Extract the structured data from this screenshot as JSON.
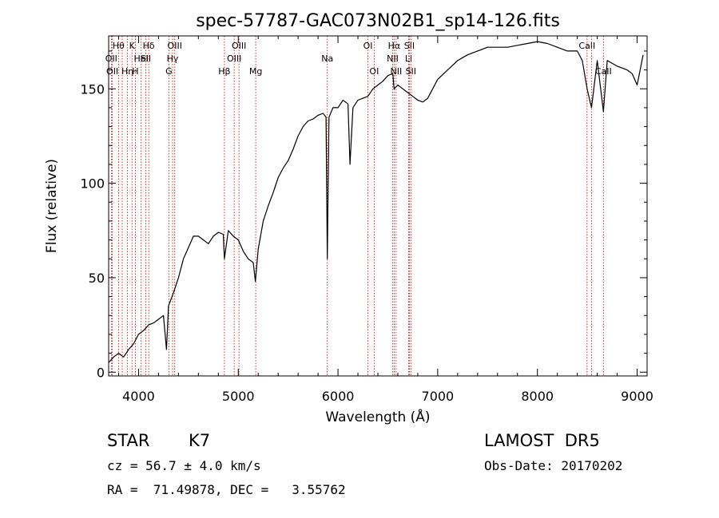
{
  "chart_data": {
    "type": "line",
    "title": "spec-57787-GAC073N02B1_sp14-126.fits",
    "xlabel": "Wavelength (Å)",
    "ylabel": "Flux (relative)",
    "xlim": [
      3700,
      9100
    ],
    "ylim": [
      -2,
      178
    ],
    "xticks": [
      4000,
      5000,
      6000,
      7000,
      8000,
      9000
    ],
    "xtick_labels": [
      "4000",
      "5000",
      "6000",
      "7000",
      "8000",
      "9000"
    ],
    "yticks": [
      0,
      50,
      100,
      150
    ],
    "ytick_labels": [
      "0",
      "50",
      "100",
      "150"
    ],
    "grid": false,
    "line_color": "#000000",
    "marker_color": "#cc0000",
    "series": [
      {
        "x": [
          3700,
          3750,
          3800,
          3850,
          3900,
          3950,
          4000,
          4050,
          4100,
          4150,
          4200,
          4250,
          4280,
          4300,
          4350,
          4400,
          4450,
          4500,
          4550,
          4600,
          4650,
          4700,
          4750,
          4800,
          4850,
          4861,
          4900,
          4950,
          5000,
          5050,
          5100,
          5150,
          5172,
          5200,
          5250,
          5300,
          5350,
          5400,
          5450,
          5500,
          5550,
          5600,
          5650,
          5700,
          5750,
          5800,
          5850,
          5880,
          5893,
          5910,
          5950,
          6000,
          6050,
          6100,
          6120,
          6150,
          6200,
          6250,
          6300,
          6350,
          6400,
          6450,
          6500,
          6550,
          6563,
          6600,
          6650,
          6700,
          6750,
          6800,
          6850,
          6900,
          6950,
          7000,
          7100,
          7200,
          7300,
          7400,
          7500,
          7600,
          7700,
          7800,
          7900,
          8000,
          8100,
          8200,
          8300,
          8400,
          8450,
          8498,
          8542,
          8600,
          8662,
          8700,
          8800,
          8900,
          8950,
          9000,
          9030,
          9060
        ],
        "y": [
          5,
          8,
          10,
          8,
          12,
          15,
          20,
          22,
          25,
          26,
          28,
          30,
          12,
          35,
          42,
          50,
          60,
          66,
          72,
          72,
          70,
          68,
          72,
          74,
          73,
          60,
          75,
          72,
          70,
          64,
          60,
          58,
          48,
          65,
          80,
          88,
          95,
          103,
          108,
          112,
          118,
          125,
          130,
          133,
          134,
          136,
          137,
          135,
          60,
          135,
          140,
          140,
          144,
          142,
          110,
          140,
          144,
          145,
          146,
          150,
          152,
          154,
          157,
          158,
          150,
          152,
          150,
          148,
          146,
          144,
          143,
          145,
          150,
          155,
          160,
          165,
          168,
          170,
          172,
          172,
          172,
          173,
          174,
          175,
          174,
          172,
          170,
          170,
          165,
          150,
          140,
          165,
          138,
          165,
          162,
          160,
          158,
          152,
          160,
          168
        ]
      }
    ],
    "lines": [
      {
        "x": 3799,
        "label": "Hθ",
        "row": 0
      },
      {
        "x": 3836,
        "label": "",
        "row": 0
      },
      {
        "x": 3889,
        "label": "Hη",
        "row": 2
      },
      {
        "x": 3934,
        "label": "K",
        "row": 0
      },
      {
        "x": 3968,
        "label": "H",
        "row": 2
      },
      {
        "x": 4026,
        "label": "HeI",
        "row": 1
      },
      {
        "x": 4102,
        "label": "Hδ",
        "row": 0
      },
      {
        "x": 4072,
        "label": "SII",
        "row": 1
      },
      {
        "x": 3727,
        "label": "OII",
        "row": 1
      },
      {
        "x": 3737,
        "label": "OII",
        "row": 2
      },
      {
        "x": 4304,
        "label": "G",
        "row": 2
      },
      {
        "x": 4341,
        "label": "Hγ",
        "row": 1
      },
      {
        "x": 4363,
        "label": "OIII",
        "row": 0
      },
      {
        "x": 4861,
        "label": "Hβ",
        "row": 2
      },
      {
        "x": 4959,
        "label": "OIII",
        "row": 1
      },
      {
        "x": 5007,
        "label": "OIII",
        "row": 0
      },
      {
        "x": 5175,
        "label": "Mg",
        "row": 2
      },
      {
        "x": 5893,
        "label": "Na",
        "row": 1
      },
      {
        "x": 6300,
        "label": "OI",
        "row": 0
      },
      {
        "x": 6363,
        "label": "OI",
        "row": 2
      },
      {
        "x": 6548,
        "label": "NII",
        "row": 1
      },
      {
        "x": 6563,
        "label": "Hα",
        "row": 0
      },
      {
        "x": 6583,
        "label": "NII",
        "row": 2
      },
      {
        "x": 6708,
        "label": "Li",
        "row": 1
      },
      {
        "x": 6716,
        "label": "SII",
        "row": 0
      },
      {
        "x": 6731,
        "label": "SII",
        "row": 2
      },
      {
        "x": 8498,
        "label": "CaII",
        "row": 0
      },
      {
        "x": 8542,
        "label": "",
        "row": 0
      },
      {
        "x": 8662,
        "label": "CaII",
        "row": 2
      }
    ]
  },
  "info": {
    "object_type": "STAR",
    "subclass": "K7",
    "survey": "LAMOST  DR5",
    "cz": "cz = 56.7 ± 4.0 km/s",
    "obs_date": "Obs-Date: 20170202",
    "coords": "RA =  71.49878, DEC =   3.55762"
  }
}
